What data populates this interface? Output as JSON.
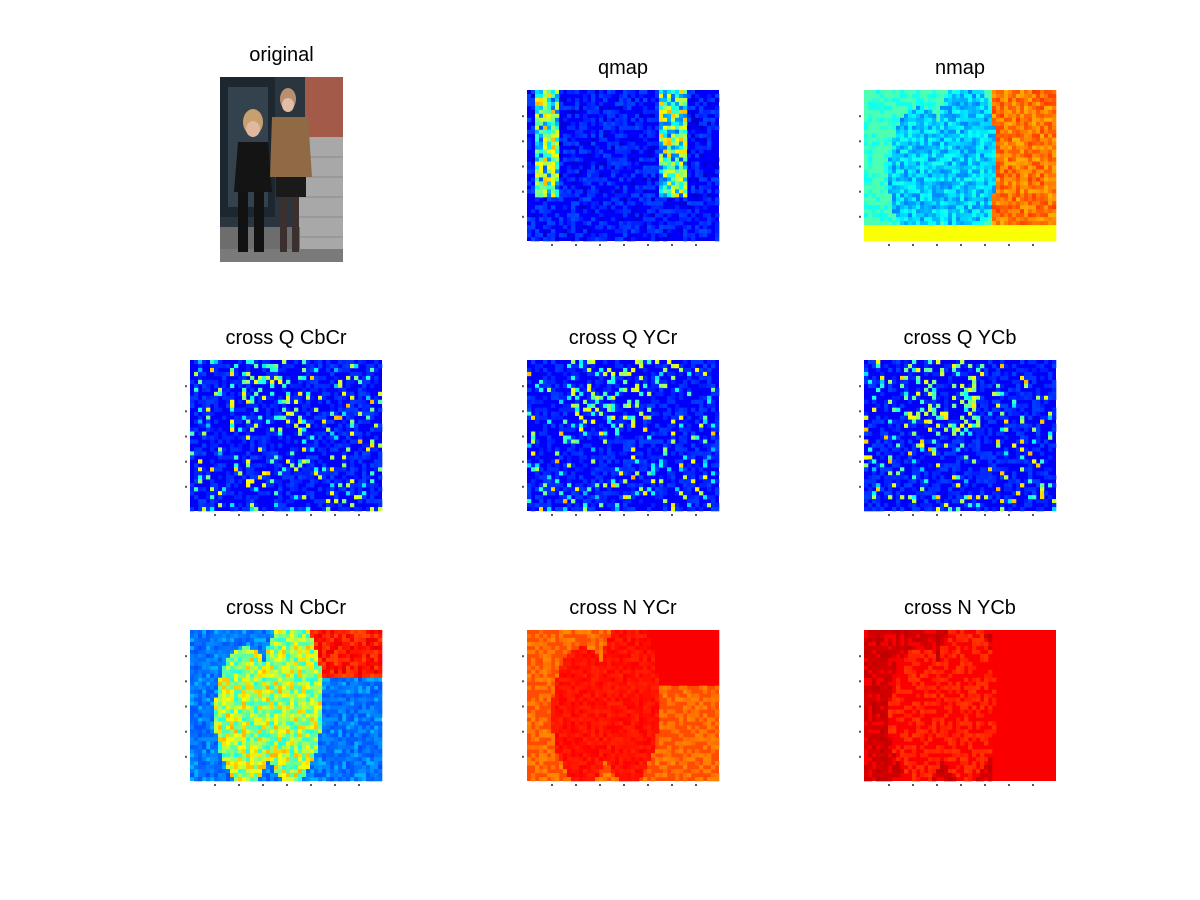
{
  "figure": {
    "panels": [
      {
        "id": "original",
        "title": "original",
        "kind": "photo"
      },
      {
        "id": "qmap",
        "title": "qmap",
        "kind": "heatmap",
        "cmap": "jet",
        "pattern": "sparse-edges",
        "level": 0.12
      },
      {
        "id": "nmap",
        "title": "nmap",
        "kind": "heatmap",
        "cmap": "jet",
        "pattern": "scene",
        "level": 0.45
      },
      {
        "id": "cross-q-cbcr",
        "title": "cross Q CbCr",
        "kind": "heatmap",
        "cmap": "jet",
        "pattern": "sparse",
        "level": 0.12
      },
      {
        "id": "cross-q-ycr",
        "title": "cross Q YCr",
        "kind": "heatmap",
        "cmap": "jet",
        "pattern": "sparse",
        "level": 0.12
      },
      {
        "id": "cross-q-ycb",
        "title": "cross Q YCb",
        "kind": "heatmap",
        "cmap": "jet",
        "pattern": "sparse",
        "level": 0.12
      },
      {
        "id": "cross-n-cbcr",
        "title": "cross N CbCr",
        "kind": "heatmap",
        "cmap": "jet",
        "pattern": "scene-cool",
        "level": 0.3
      },
      {
        "id": "cross-n-ycr",
        "title": "cross N YCr",
        "kind": "heatmap",
        "cmap": "jet",
        "pattern": "scene-warm",
        "level": 0.8
      },
      {
        "id": "cross-n-ycb",
        "title": "cross N YCb",
        "kind": "heatmap",
        "cmap": "jet",
        "pattern": "scene-hot",
        "level": 0.88
      }
    ],
    "colors": {
      "background": "#ffffff",
      "jet_low": "#0000a0",
      "jet_high": "#b00000",
      "photo_wall_left": "#1d2730",
      "photo_wall_right": "#a8a8a8",
      "photo_brick": "#a45a48",
      "photo_jacket_black": "#141414",
      "photo_jacket_brown": "#8f6a45"
    }
  }
}
